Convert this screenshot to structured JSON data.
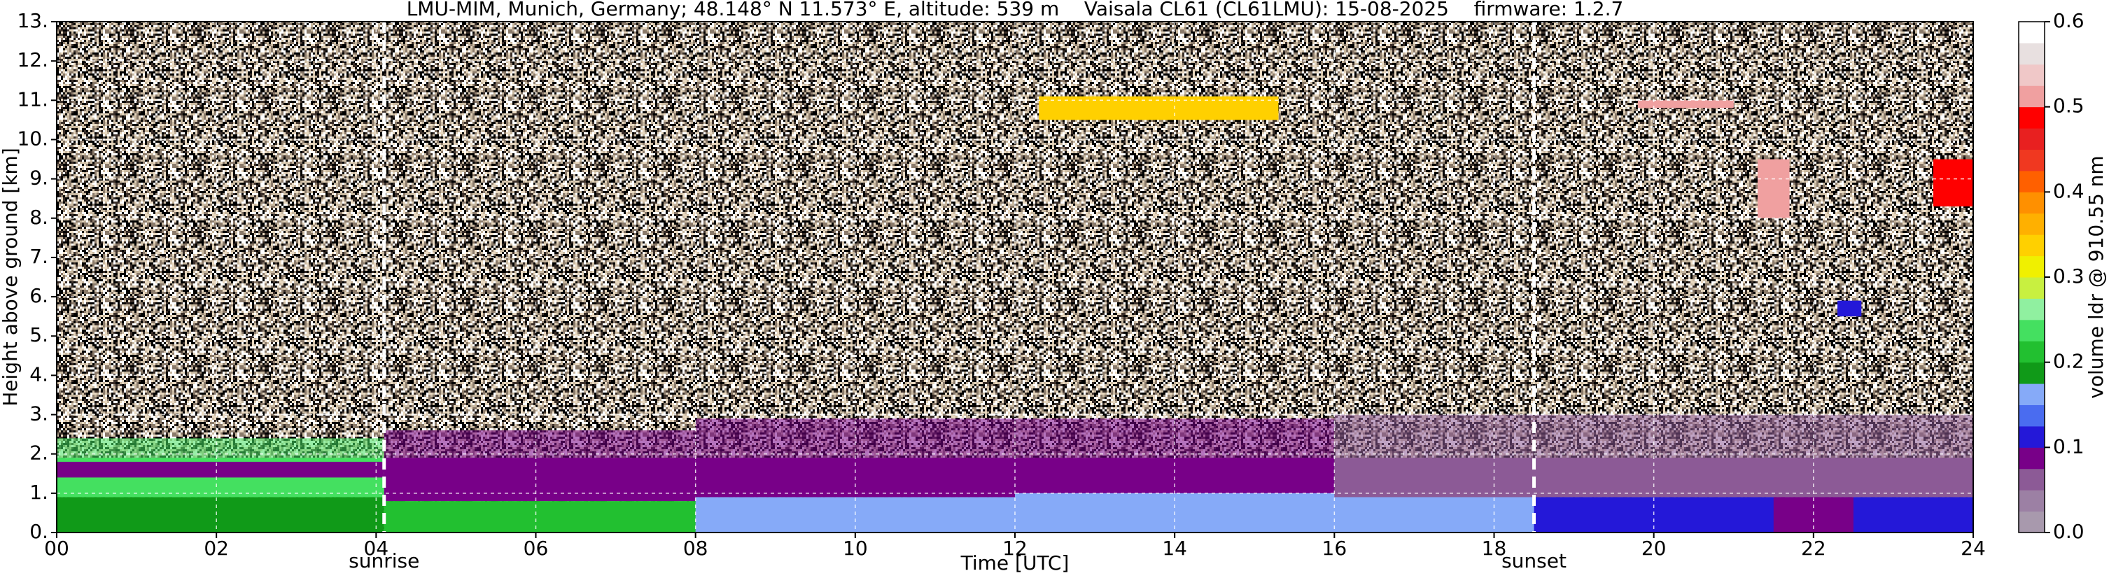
{
  "chart_data": {
    "type": "heatmap",
    "title": "LMU-MIM, Munich, Germany; 48.148° N 11.573° E, altitude: 539 m    Vaisala CL61 (CL61LMU): 15-08-2025    firmware: 1.2.7",
    "x_label": "Time [UTC]",
    "y_label": "Height above ground [km]",
    "colorbar_label": "volume ldr @ 910.55 nm",
    "xlim": [
      0,
      24
    ],
    "ylim": [
      0,
      13
    ],
    "clim": [
      0,
      0.6
    ],
    "xticks": [
      {
        "value": 0,
        "label": "00"
      },
      {
        "value": 2,
        "label": "02"
      },
      {
        "value": 4,
        "label": "04"
      },
      {
        "value": 6,
        "label": "06"
      },
      {
        "value": 8,
        "label": "08"
      },
      10,
      12,
      14,
      16,
      18,
      20,
      22,
      24
    ],
    "yticks": [
      {
        "value": 0,
        "label": "0."
      },
      {
        "value": 1,
        "label": "1."
      },
      {
        "value": 2,
        "label": "2."
      },
      {
        "value": 3,
        "label": "3."
      },
      {
        "value": 4,
        "label": "4."
      },
      {
        "value": 5,
        "label": "5."
      },
      {
        "value": 6,
        "label": "6."
      },
      {
        "value": 7,
        "label": "7."
      },
      {
        "value": 8,
        "label": "8."
      },
      {
        "value": 9,
        "label": "9."
      },
      {
        "value": 10,
        "label": "10."
      },
      {
        "value": 11,
        "label": "11."
      },
      {
        "value": 12,
        "label": "12."
      },
      {
        "value": 13,
        "label": "13."
      }
    ],
    "cticks": [
      {
        "value": 0,
        "label": "0.0"
      },
      0.1,
      0.2,
      0.3,
      0.4,
      0.5,
      0.6
    ],
    "grid": true,
    "colormap": [
      "#a899ad",
      "#9c80a4",
      "#8c5a96",
      "#780088",
      "#2418d8",
      "#4a6cf0",
      "#86aaf8",
      "#109a18",
      "#22c030",
      "#44e060",
      "#90f0a0",
      "#c8f040",
      "#f0f000",
      "#ffd000",
      "#ffb000",
      "#ff9000",
      "#ff6000",
      "#f03820",
      "#e82020",
      "#ff0000",
      "#f0a0a0",
      "#f0c8c8",
      "#e8e0e0",
      "#ffffff"
    ],
    "annotations": [
      {
        "label": "sunrise",
        "x": 4.1
      },
      {
        "label": "sunset",
        "x": 18.5
      }
    ],
    "regions": [
      {
        "x0": 0,
        "x1": 4.1,
        "y0": 0,
        "y1": 0.9,
        "value": 0.19
      },
      {
        "x0": 0,
        "x1": 4.1,
        "y0": 0.9,
        "y1": 2.4,
        "value": 0.23
      },
      {
        "x0": 0,
        "x1": 4.1,
        "y0": 1.4,
        "y1": 1.8,
        "value": 0.09
      },
      {
        "x0": 4.1,
        "x1": 10,
        "y0": 0,
        "y1": 0.8,
        "value": 0.21
      },
      {
        "x0": 4.1,
        "x1": 8,
        "y0": 0.8,
        "y1": 2.6,
        "value": 0.09
      },
      {
        "x0": 8,
        "x1": 12,
        "y0": 0,
        "y1": 0.9,
        "value": 0.16
      },
      {
        "x0": 8,
        "x1": 16,
        "y0": 0.9,
        "y1": 2.9,
        "value": 0.08
      },
      {
        "x0": 12,
        "x1": 18.5,
        "y0": 0,
        "y1": 1.0,
        "value": 0.16
      },
      {
        "x0": 16,
        "x1": 24,
        "y0": 0.9,
        "y1": 3.0,
        "value": 0.07
      },
      {
        "x0": 18.5,
        "x1": 24,
        "y0": 0,
        "y1": 0.9,
        "value": 0.11
      },
      {
        "x0": 21.5,
        "x1": 22.5,
        "y0": 0,
        "y1": 0.9,
        "value": 0.08
      },
      {
        "x0": 12.3,
        "x1": 15.3,
        "y0": 10.5,
        "y1": 11.1,
        "value": 0.33
      },
      {
        "x0": 19.8,
        "x1": 21,
        "y0": 10.8,
        "y1": 11.0,
        "value": 0.51
      },
      {
        "x0": 21.3,
        "x1": 21.7,
        "y0": 8.0,
        "y1": 9.5,
        "value": 0.51
      },
      {
        "x0": 23.5,
        "x1": 24,
        "y0": 8.3,
        "y1": 9.5,
        "value": 0.48
      },
      {
        "x0": 22.3,
        "x1": 22.6,
        "y0": 5.5,
        "y1": 5.9,
        "value": 0.11
      }
    ]
  }
}
